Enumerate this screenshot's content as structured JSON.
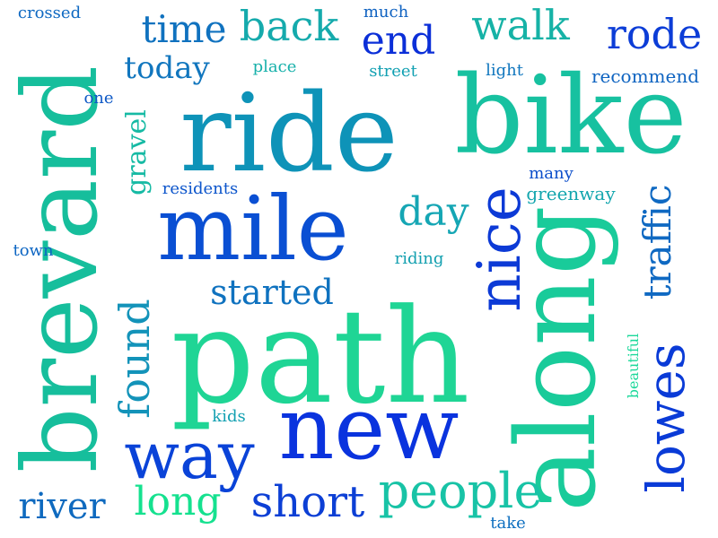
{
  "word_cloud": {
    "words": [
      {
        "text": "ride",
        "color": "#0E93B8"
      },
      {
        "text": "bike",
        "color": "#17C1A0"
      },
      {
        "text": "path",
        "color": "#1FD595"
      },
      {
        "text": "along",
        "color": "#19CB9A"
      },
      {
        "text": "brevard",
        "color": "#16BE9C"
      },
      {
        "text": "mile",
        "color": "#0A4FD3"
      },
      {
        "text": "new",
        "color": "#0A33DE"
      },
      {
        "text": "way",
        "color": "#0A43D8"
      },
      {
        "text": "nice",
        "color": "#0C3AD6"
      },
      {
        "text": "lowes",
        "color": "#0A3BD7"
      },
      {
        "text": "people",
        "color": "#18C3A6"
      },
      {
        "text": "short",
        "color": "#0C3FD5"
      },
      {
        "text": "found",
        "color": "#1393B9"
      },
      {
        "text": "long",
        "color": "#15E18F"
      },
      {
        "text": "river",
        "color": "#0F6ABF"
      },
      {
        "text": "started",
        "color": "#0F72BF"
      },
      {
        "text": "day",
        "color": "#15A6B4"
      },
      {
        "text": "traffic",
        "color": "#0F69C2"
      },
      {
        "text": "end",
        "color": "#0B2FD8"
      },
      {
        "text": "rode",
        "color": "#0C3DD7"
      },
      {
        "text": "walk",
        "color": "#16B2A6"
      },
      {
        "text": "back",
        "color": "#15AAAC"
      },
      {
        "text": "time",
        "color": "#1072BF"
      },
      {
        "text": "today",
        "color": "#1176BE"
      },
      {
        "text": "gravel",
        "color": "#16BAA4"
      },
      {
        "text": "crossed",
        "color": "#0F69C2"
      },
      {
        "text": "much",
        "color": "#0F62C1"
      },
      {
        "text": "place",
        "color": "#16B0AA"
      },
      {
        "text": "street",
        "color": "#11A0B2"
      },
      {
        "text": "light",
        "color": "#1076BE"
      },
      {
        "text": "recommend",
        "color": "#0F64C1"
      },
      {
        "text": "one",
        "color": "#0D58C6"
      },
      {
        "text": "residents",
        "color": "#0C55CB"
      },
      {
        "text": "many",
        "color": "#0D4FCB"
      },
      {
        "text": "greenway",
        "color": "#14A6AE"
      },
      {
        "text": "town",
        "color": "#0E66C3"
      },
      {
        "text": "riding",
        "color": "#14A0B0"
      },
      {
        "text": "kids",
        "color": "#12A0B1"
      },
      {
        "text": "beautiful",
        "color": "#1BD89A"
      },
      {
        "text": "take",
        "color": "#0E6FC0"
      }
    ]
  }
}
